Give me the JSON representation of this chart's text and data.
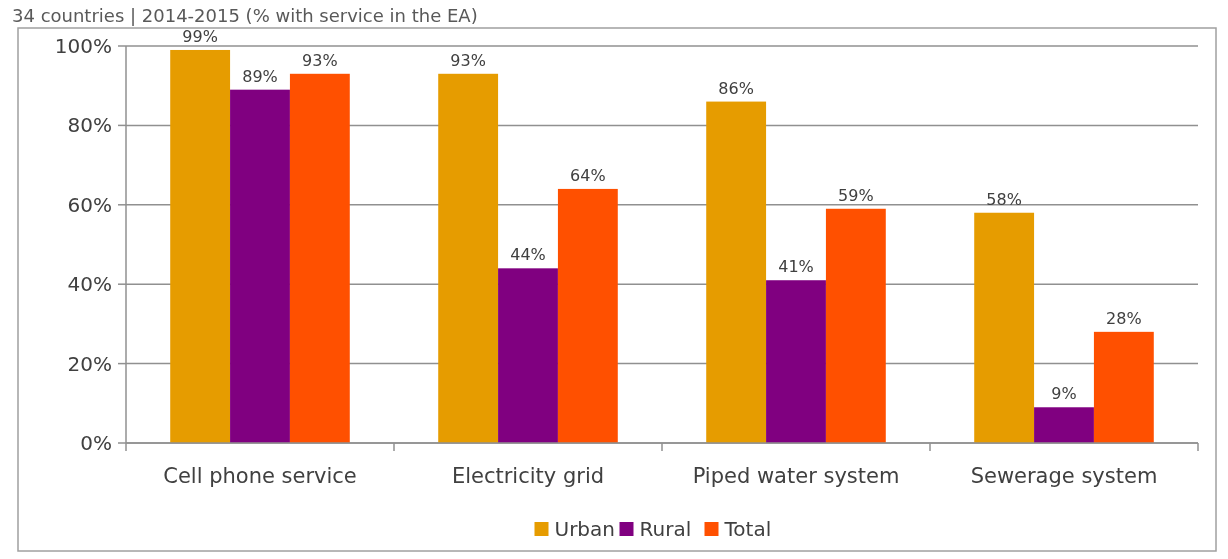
{
  "chart_data": {
    "type": "bar",
    "subtitle": "34 countries | 2014-2015 (% with service in the EA)",
    "categories": [
      "Cell phone service",
      "Electricity grid",
      "Piped water system",
      "Sewerage system"
    ],
    "series": [
      {
        "name": "Urban",
        "color": "#e69c00",
        "values": [
          99,
          93,
          86,
          58
        ],
        "value_labels": [
          "99%",
          "93%",
          "86%",
          "58%"
        ]
      },
      {
        "name": "Rural",
        "color": "#800080",
        "values": [
          89,
          44,
          41,
          9
        ],
        "value_labels": [
          "89%",
          "44%",
          "41%",
          "9%"
        ]
      },
      {
        "name": "Total",
        "color": "#ff5000",
        "values": [
          93,
          64,
          59,
          28
        ],
        "value_labels": [
          "93%",
          "64%",
          "59%",
          "28%"
        ]
      }
    ],
    "ylim": [
      0,
      100
    ],
    "yticks": [
      {
        "value": 0,
        "label": "0%"
      },
      {
        "value": 20,
        "label": "20%"
      },
      {
        "value": 40,
        "label": "40%"
      },
      {
        "value": 60,
        "label": "60%"
      },
      {
        "value": 80,
        "label": "80%"
      },
      {
        "value": 100,
        "label": "100%"
      }
    ],
    "grid": "y",
    "legend": "bottom"
  }
}
